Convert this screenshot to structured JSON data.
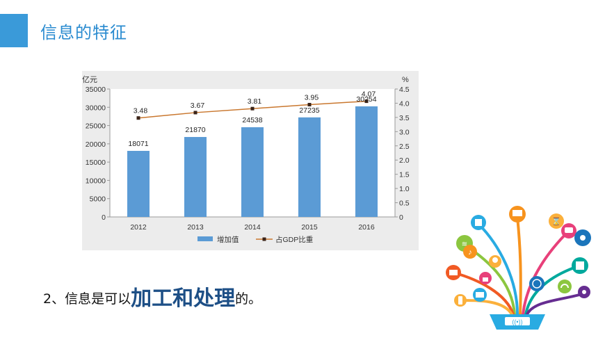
{
  "title": "信息的特征",
  "caption": {
    "prefix": "2、信息是可以",
    "emphasis": "加工和处理",
    "suffix": "的。"
  },
  "chart_data": {
    "type": "bar",
    "categories": [
      "2012",
      "2013",
      "2014",
      "2015",
      "2016"
    ],
    "series": [
      {
        "name": "增加值",
        "type": "bar",
        "axis": "left",
        "values": [
          18071,
          21870,
          24538,
          27235,
          30254
        ],
        "color": "#5b9bd5"
      },
      {
        "name": "占GDP比重",
        "type": "line",
        "axis": "right",
        "values": [
          3.48,
          3.67,
          3.81,
          3.95,
          4.07
        ],
        "color": "#c9772e"
      }
    ],
    "ylabel": "亿元",
    "y2label": "%",
    "ylim": [
      0,
      35000
    ],
    "y2lim": [
      0,
      4.5
    ],
    "yticks": [
      "0",
      "5000",
      "10000",
      "15000",
      "20000",
      "25000",
      "30000",
      "35000"
    ],
    "y2ticks": [
      "0",
      "0.5",
      "1.0",
      "1.5",
      "2.0",
      "2.5",
      "3.0",
      "3.5",
      "4.0",
      "4.5"
    ],
    "bar_labels": [
      "18071",
      "21870",
      "24538",
      "27235",
      "30254"
    ],
    "line_labels": [
      "3.48",
      "3.67",
      "3.81",
      "3.95",
      "4.07"
    ],
    "legend": [
      "增加值",
      "占GDP比重"
    ],
    "legend_position": "bottom",
    "grid": false
  },
  "illustration": {
    "icons": [
      "wifi-icon",
      "ebook-icon",
      "music-icon",
      "chat-icon",
      "globe-icon",
      "hourglass-icon",
      "lightbulb-icon",
      "monitor-icon",
      "camera-icon",
      "mail-icon",
      "tablet-icon",
      "podcast-icon",
      "lock-icon",
      "headphones-icon"
    ]
  }
}
